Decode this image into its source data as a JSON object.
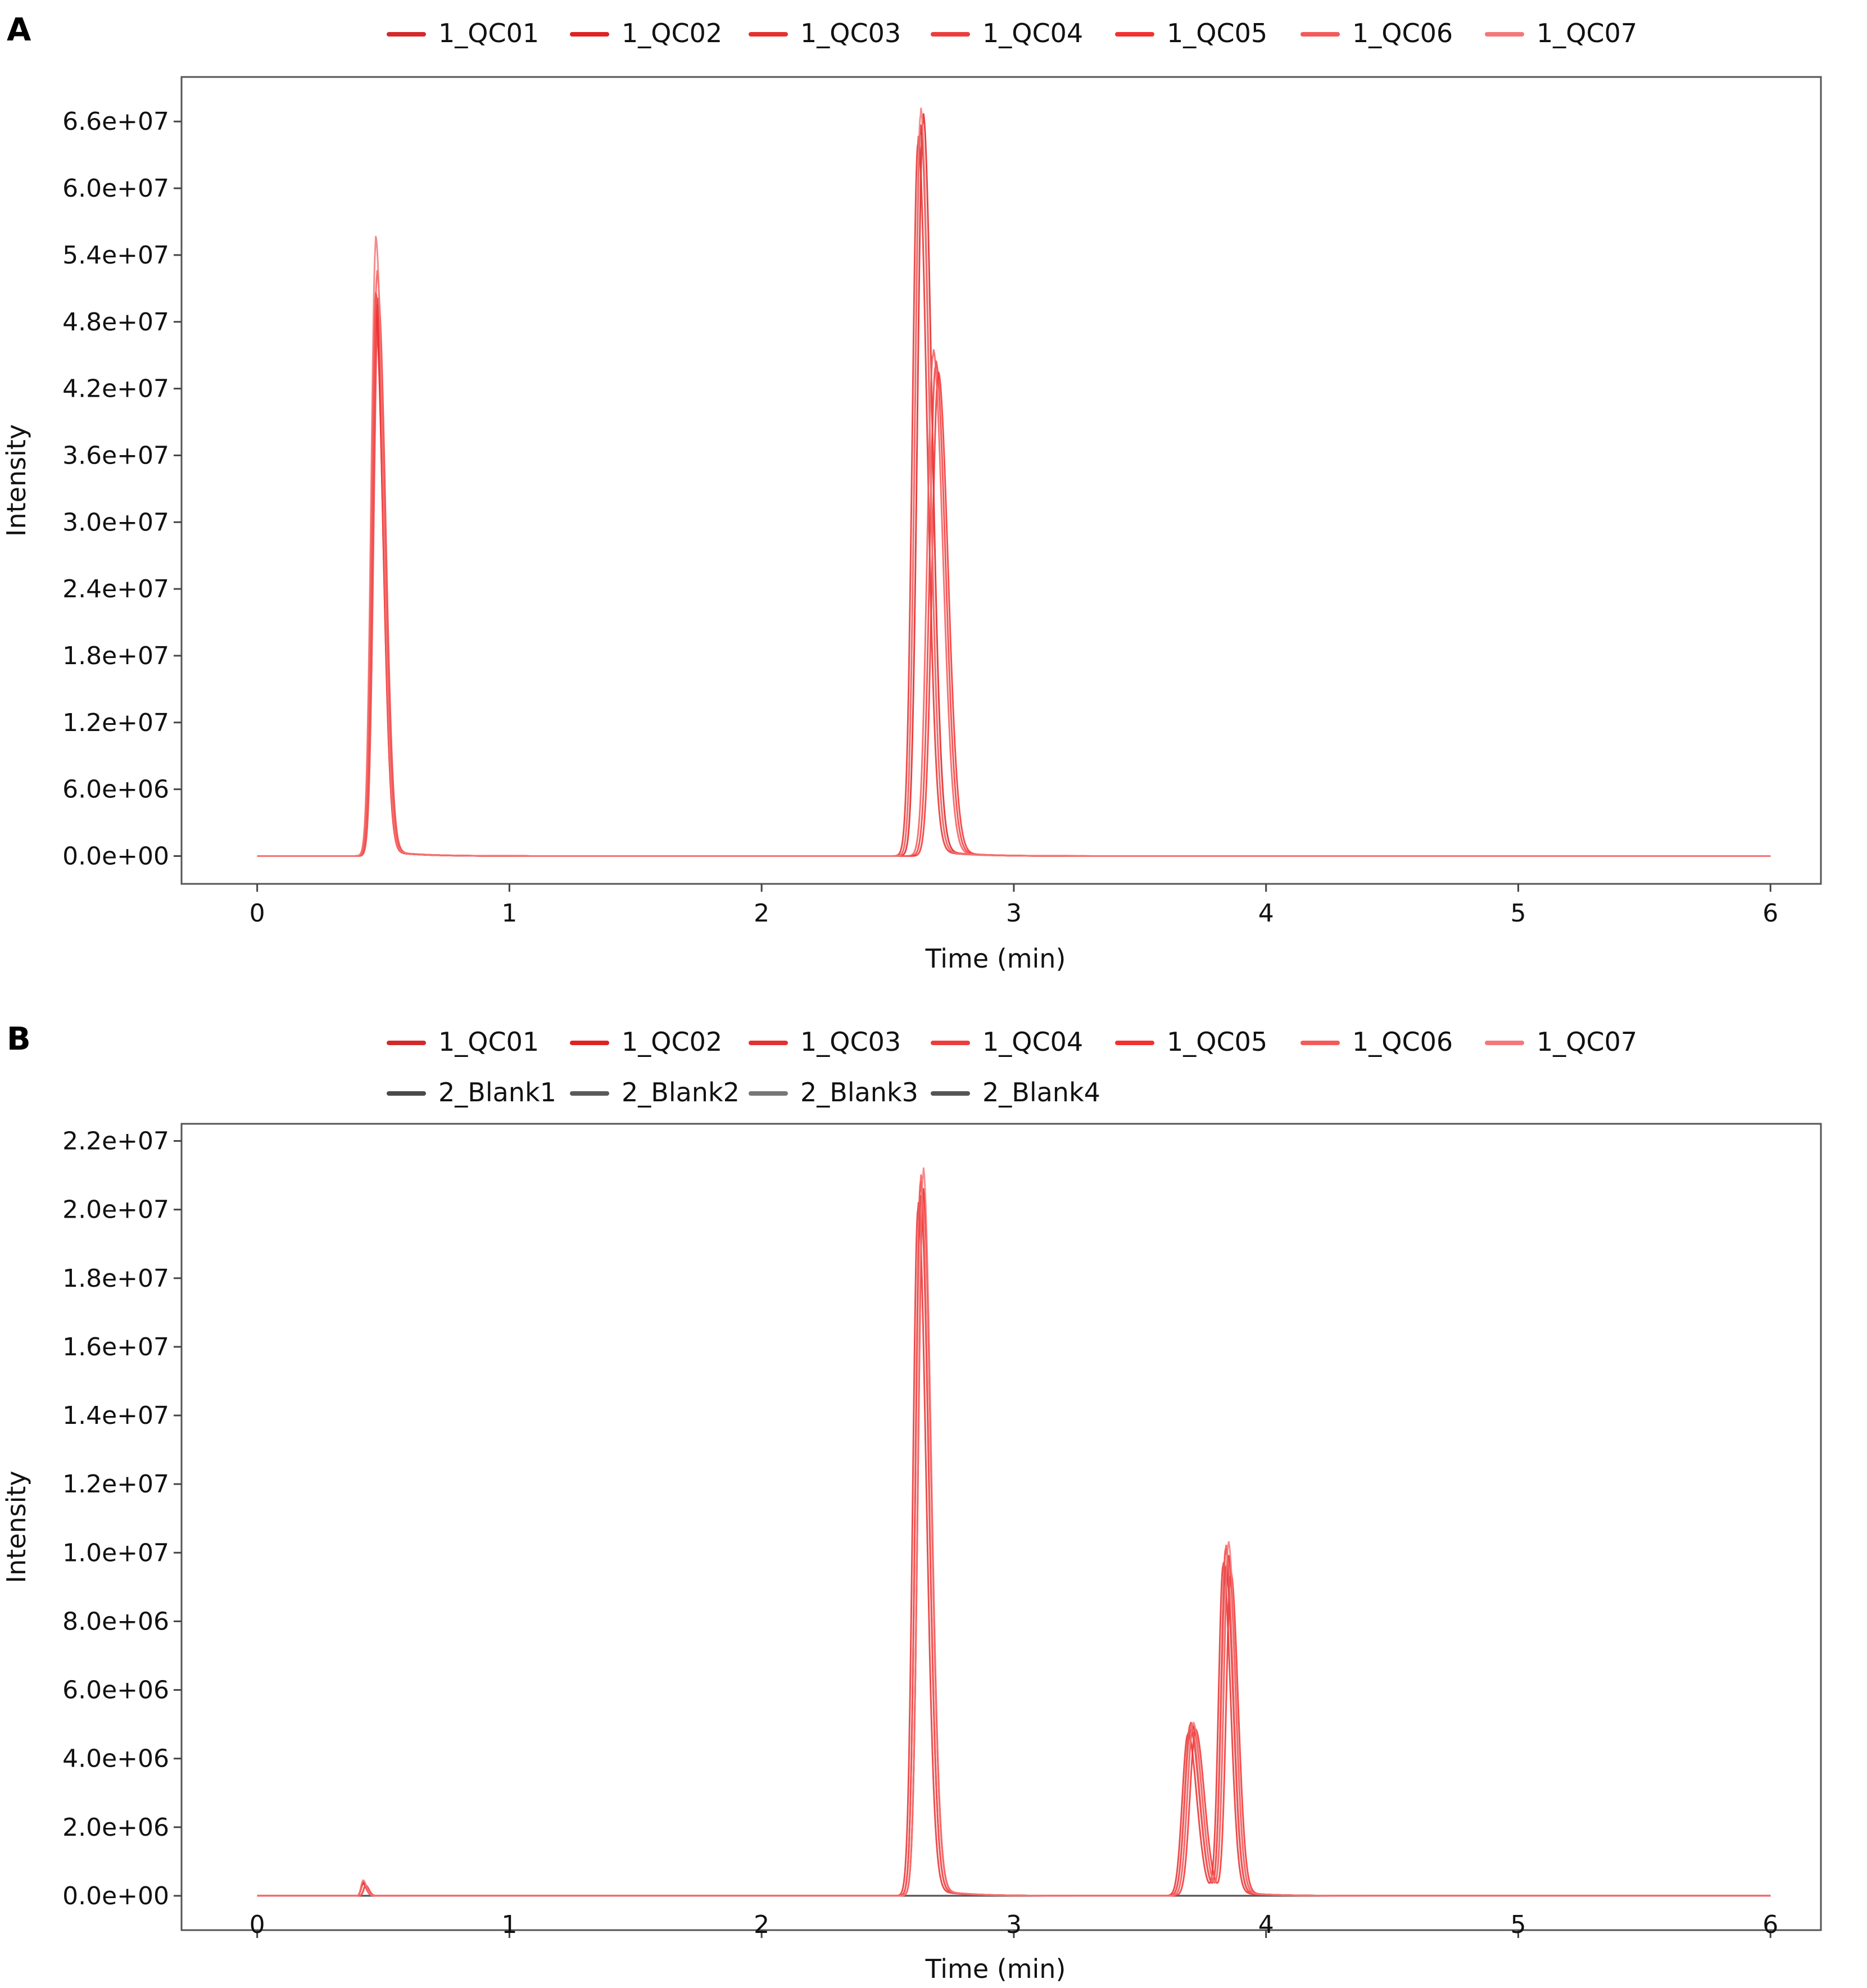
{
  "chart_data": [
    {
      "panel": "A",
      "type": "line",
      "xlabel": "Time (min)",
      "ylabel": "Intensity",
      "xlim": [
        -0.3,
        6.2
      ],
      "ylim": [
        -2500000,
        70000000
      ],
      "x_ticks": [
        0,
        1,
        2,
        3,
        4,
        5,
        6
      ],
      "x_tick_labels": [
        "0",
        "1",
        "2",
        "3",
        "4",
        "5",
        "6"
      ],
      "y_ticks": [
        0,
        6000000,
        12000000,
        18000000,
        24000000,
        30000000,
        36000000,
        42000000,
        48000000,
        54000000,
        60000000,
        66000000
      ],
      "y_tick_labels": [
        "0.0e+00",
        "6.0e+06",
        "1.2e+07",
        "1.8e+07",
        "2.4e+07",
        "3.0e+07",
        "3.6e+07",
        "4.2e+07",
        "4.8e+07",
        "5.4e+07",
        "6.0e+07",
        "6.6e+07"
      ],
      "legend": "top",
      "series": [
        {
          "name": "1_QC01",
          "color": "#d42a2a",
          "peaks": [
            [
              0.47,
              48000000,
              0.018
            ],
            [
              2.63,
              65000000,
              0.022
            ]
          ]
        },
        {
          "name": "1_QC02",
          "color": "#e02222",
          "peaks": [
            [
              0.475,
              49000000,
              0.018
            ],
            [
              2.64,
              66000000,
              0.022
            ]
          ]
        },
        {
          "name": "1_QC03",
          "color": "#e63030",
          "peaks": [
            [
              0.47,
              50000000,
              0.018
            ],
            [
              2.62,
              64000000,
              0.022
            ]
          ]
        },
        {
          "name": "1_QC04",
          "color": "#ee3c3c",
          "peaks": [
            [
              0.48,
              49500000,
              0.018
            ],
            [
              2.69,
              44000000,
              0.024
            ]
          ]
        },
        {
          "name": "1_QC05",
          "color": "#f43030",
          "peaks": [
            [
              0.47,
              48500000,
              0.018
            ],
            [
              2.7,
              43000000,
              0.024
            ]
          ]
        },
        {
          "name": "1_QC06",
          "color": "#f45a5a",
          "peaks": [
            [
              0.475,
              52000000,
              0.018
            ],
            [
              2.68,
              45000000,
              0.024
            ]
          ]
        },
        {
          "name": "1_QC07",
          "color": "#f47878",
          "peaks": [
            [
              0.47,
              55000000,
              0.018
            ],
            [
              2.63,
              66500000,
              0.022
            ]
          ]
        }
      ]
    },
    {
      "panel": "B",
      "type": "line",
      "xlabel": "Time (min)",
      "ylabel": "Intensity",
      "xlim": [
        -0.3,
        6.2
      ],
      "ylim": [
        -1000000,
        22500000
      ],
      "x_ticks": [
        0,
        1,
        2,
        3,
        4,
        5,
        6
      ],
      "x_tick_labels": [
        "0",
        "1",
        "2",
        "3",
        "4",
        "5",
        "6"
      ],
      "y_ticks": [
        0,
        2000000,
        4000000,
        6000000,
        8000000,
        10000000,
        12000000,
        14000000,
        16000000,
        18000000,
        20000000,
        22000000
      ],
      "y_tick_labels": [
        "0.0e+00",
        "2.0e+06",
        "4.0e+06",
        "6.0e+06",
        "8.0e+06",
        "1.0e+07",
        "1.2e+07",
        "1.4e+07",
        "1.6e+07",
        "1.8e+07",
        "2.0e+07",
        "2.2e+07"
      ],
      "legend": "top",
      "series": [
        {
          "name": "1_QC01",
          "color": "#d42a2a",
          "peaks": [
            [
              0.42,
              400000,
              0.008
            ],
            [
              2.63,
              20200000,
              0.02
            ],
            [
              3.7,
              4800000,
              0.022
            ],
            [
              3.84,
              9500000,
              0.018
            ]
          ]
        },
        {
          "name": "1_QC02",
          "color": "#e02222",
          "peaks": [
            [
              0.43,
              300000,
              0.008
            ],
            [
              2.64,
              20400000,
              0.02
            ],
            [
              3.71,
              4900000,
              0.022
            ],
            [
              3.85,
              9800000,
              0.018
            ]
          ]
        },
        {
          "name": "1_QC03",
          "color": "#e63030",
          "peaks": [
            [
              0.42,
              350000,
              0.008
            ],
            [
              2.62,
              20000000,
              0.02
            ],
            [
              3.69,
              4700000,
              0.022
            ],
            [
              3.83,
              9600000,
              0.018
            ]
          ]
        },
        {
          "name": "1_QC04",
          "color": "#ee3c3c",
          "peaks": [
            [
              0.43,
              300000,
              0.008
            ],
            [
              2.63,
              20600000,
              0.02
            ],
            [
              3.7,
              5000000,
              0.022
            ],
            [
              3.84,
              10000000,
              0.018
            ]
          ]
        },
        {
          "name": "1_QC05",
          "color": "#f43030",
          "peaks": [
            [
              0.42,
              350000,
              0.008
            ],
            [
              2.64,
              20300000,
              0.02
            ],
            [
              3.72,
              4800000,
              0.022
            ],
            [
              3.86,
              9300000,
              0.018
            ]
          ]
        },
        {
          "name": "1_QC06",
          "color": "#f45a5a",
          "peaks": [
            [
              0.43,
              300000,
              0.008
            ],
            [
              2.63,
              20800000,
              0.02
            ],
            [
              3.7,
              4900000,
              0.022
            ],
            [
              3.84,
              10100000,
              0.018
            ]
          ]
        },
        {
          "name": "1_QC07",
          "color": "#f47878",
          "peaks": [
            [
              0.42,
              450000,
              0.008
            ],
            [
              2.64,
              21000000,
              0.02
            ],
            [
              3.71,
              5000000,
              0.022
            ],
            [
              3.85,
              10200000,
              0.018
            ]
          ]
        },
        {
          "name": "2_Blank1",
          "color": "#4a4a4a",
          "peaks": []
        },
        {
          "name": "2_Blank2",
          "color": "#5a5a5a",
          "peaks": []
        },
        {
          "name": "2_Blank3",
          "color": "#777777",
          "peaks": []
        },
        {
          "name": "2_Blank4",
          "color": "#555555",
          "peaks": []
        }
      ]
    }
  ],
  "panel_labels": [
    "A",
    "B"
  ]
}
